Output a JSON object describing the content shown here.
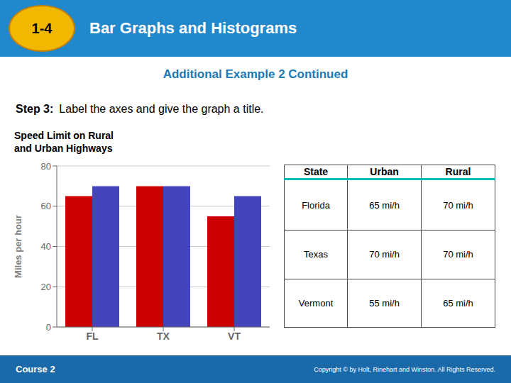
{
  "chart_data": {
    "type": "bar",
    "title": "Speed Limit on Rural\nand Urban Highways",
    "subtitle": "Additional Example 2 Continued",
    "ylabel": "Miles per hour",
    "categories": [
      "FL",
      "TX",
      "VT"
    ],
    "series": [
      {
        "name": "Urban",
        "color": "#CC0000",
        "values": [
          65,
          70,
          55
        ]
      },
      {
        "name": "Rural",
        "color": "#4444BB",
        "values": [
          70,
          70,
          65
        ]
      }
    ],
    "ylim": [
      0,
      80
    ],
    "yticks": [
      0,
      20,
      40,
      60,
      80
    ],
    "grid": true,
    "annotations": [
      "1-4",
      "Bar Graphs and Histograms",
      "Step 3:",
      "Label the axes and give the graph a title.",
      "Course 2",
      "Copyright © by Holt, Rinehart and Winston. All Rights Reserved."
    ],
    "table": {
      "headers": [
        "State",
        "Urban",
        "Rural"
      ],
      "rows": [
        [
          "Florida",
          "65 mi/h",
          "70 mi/h"
        ],
        [
          "Texas",
          "70 mi/h",
          "70 mi/h"
        ],
        [
          "Vermont",
          "55 mi/h",
          "65 mi/h"
        ]
      ]
    }
  }
}
